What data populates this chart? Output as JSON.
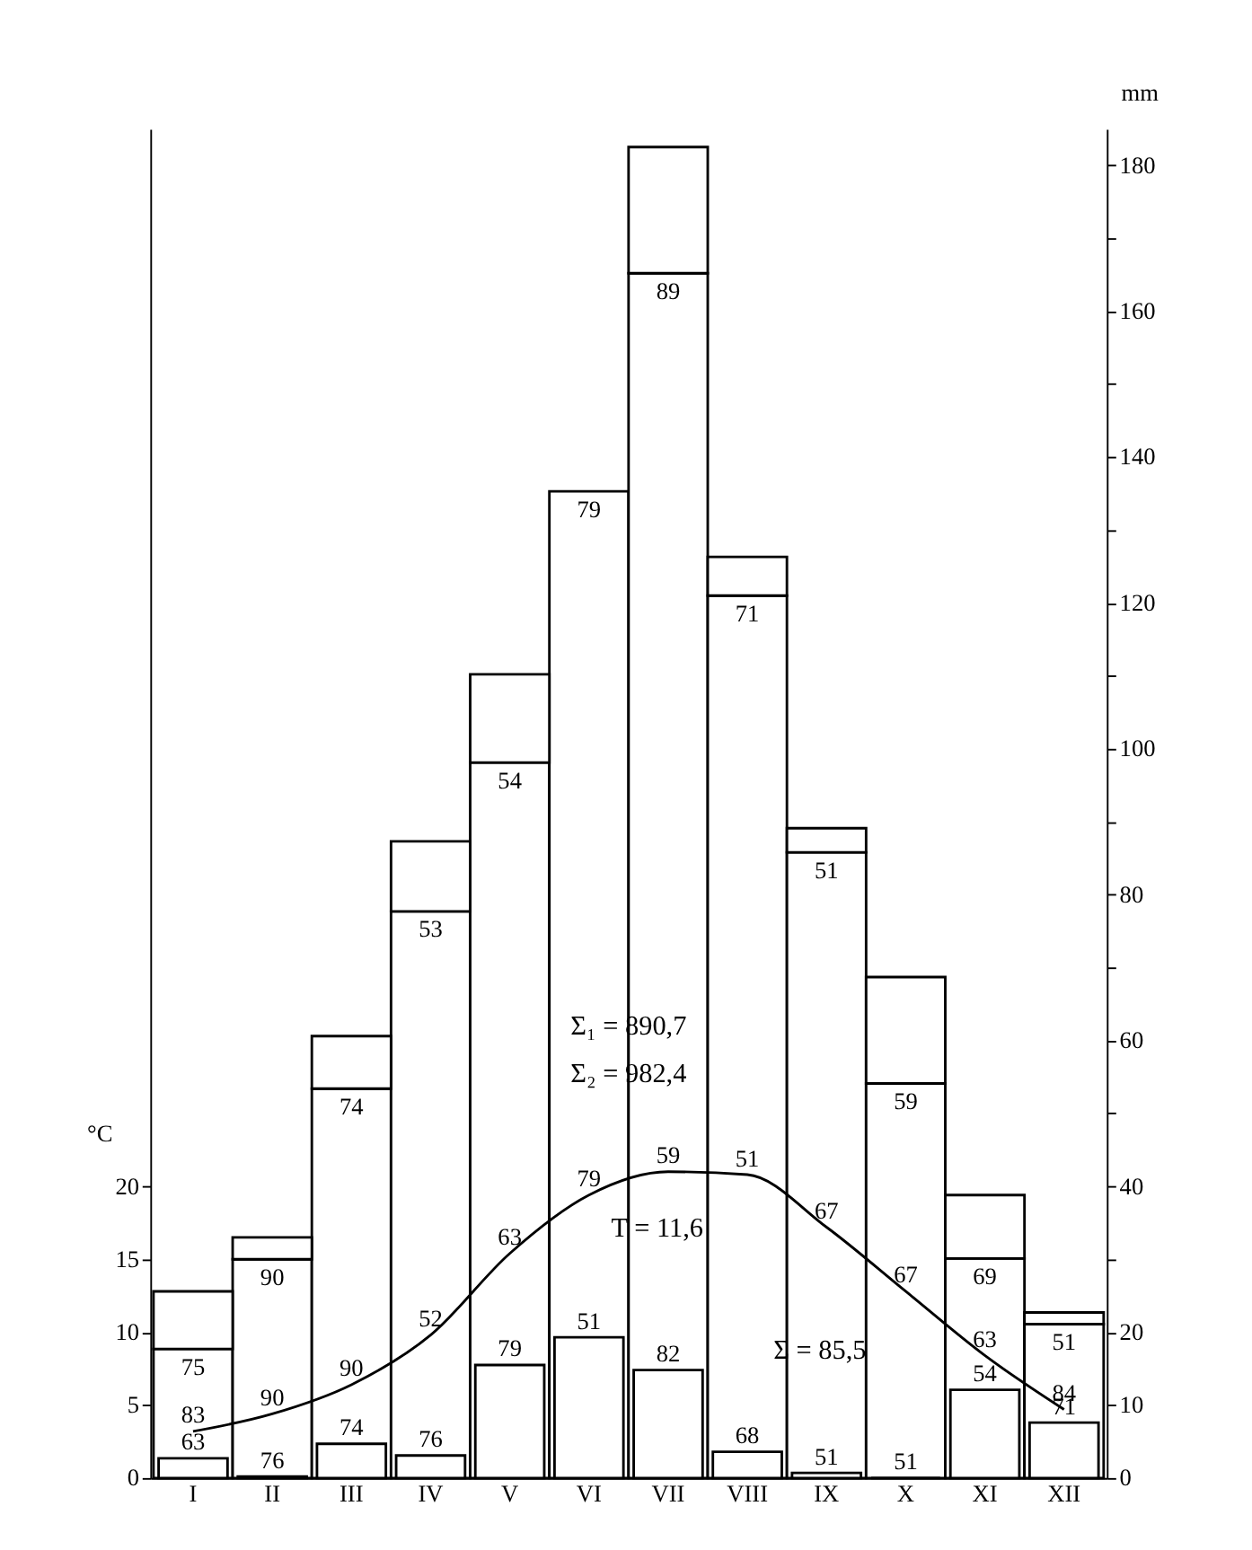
{
  "chart_data": {
    "type": "bar",
    "stacked": true,
    "categories": [
      "I",
      "II",
      "III",
      "IV",
      "V",
      "VI",
      "VII",
      "VIII",
      "IX",
      "X",
      "XI",
      "XII"
    ],
    "ylabel": "mm",
    "y2label": "°C",
    "ylim": [
      0,
      185
    ],
    "yticks": [
      {
        "value": 30,
        "label": null
      },
      40,
      {
        "value": 50,
        "label": null
      },
      60,
      {
        "value": 70,
        "label": null
      },
      80,
      {
        "value": 90,
        "label": null
      },
      100,
      {
        "value": 110,
        "label": null
      },
      120,
      {
        "value": 130,
        "label": null
      },
      140,
      {
        "value": 150,
        "label": null
      },
      160,
      {
        "value": 170,
        "label": null
      },
      180
    ],
    "y2lim": [
      0,
      92.5
    ],
    "y2ticks": [
      0,
      5,
      10,
      15,
      20
    ],
    "y3lim": [
      0,
      185
    ],
    "y3ticks": [
      0,
      10,
      20
    ],
    "series": [
      {
        "color": "#000000",
        "values": [
          17.7,
          30,
          53.4,
          77.7,
          98.1,
          135.3,
          165.2,
          121,
          85.8,
          54.1,
          30.1,
          21.1
        ]
      },
      {
        "color": "#000000",
        "values": [
          7.9,
          3,
          7.2,
          9.6,
          12.1,
          null,
          17.3,
          5.3,
          3.3,
          14.6,
          8.7,
          1.6
        ]
      },
      {
        "axis": "y3",
        "color": "#000000",
        "values": [
          2.7,
          0.2,
          4.7,
          3.1,
          15.5,
          19.3,
          14.8,
          3.6,
          0.7,
          0,
          12.1,
          7.6
        ]
      },
      {
        "type": "line",
        "axis": "y2",
        "color": "#000000",
        "values": [
          3.2,
          4.4,
          6.4,
          9.8,
          15.4,
          19.4,
          21.0,
          20.8,
          17.2,
          12.8,
          8.4,
          4.7
        ]
      }
    ],
    "annotations": [
      "Σ₁ =  890,7",
      "Σ₂ = 982,4",
      "T = 11,6",
      "Σ =  85,5",
      {
        "text": "75",
        "x": "I",
        "y": 17.7
      },
      {
        "text": "90",
        "x": "II",
        "y": 30
      },
      {
        "text": "74",
        "x": "III",
        "y": 53.4
      },
      {
        "text": "53",
        "x": "IV",
        "y": 77.7
      },
      {
        "text": "54",
        "x": "V",
        "y": 98.1
      },
      {
        "text": "79",
        "x": "VI",
        "y": 135.3
      },
      {
        "text": "89",
        "x": "VII",
        "y": 165.2
      },
      {
        "text": "71",
        "x": "VIII",
        "y": 121
      },
      {
        "text": "51",
        "x": "IX",
        "y": 85.8
      },
      {
        "text": "59",
        "x": "X",
        "y": 54.1
      },
      {
        "text": "69",
        "x": "XI",
        "y": 30.1
      },
      {
        "text": "51",
        "x": "XII",
        "y": 21.1
      },
      "63",
      "76",
      "74",
      "76",
      "79",
      "51",
      "82",
      "68",
      "51",
      "51",
      "54",
      "71",
      {
        "text": "83",
        "x": "I",
        "y": 6.4
      },
      {
        "text": "90",
        "x": "II",
        "y": 8.8
      },
      {
        "text": "90",
        "x": "III",
        "y": 12.8
      },
      {
        "text": "52",
        "x": "IV",
        "y": 19.6
      },
      {
        "text": "63",
        "x": "V",
        "y": 30.8
      },
      {
        "text": "79",
        "x": "VI",
        "y": 38.8
      },
      {
        "text": "59",
        "x": "VII",
        "y": 42
      },
      {
        "text": "51",
        "x": "VIII",
        "y": 41.6
      },
      {
        "text": "67",
        "x": "IX",
        "y": 34.4
      },
      {
        "text": "67",
        "x": "X",
        "y": 25.6
      },
      {
        "text": "63",
        "x": "XI",
        "y": 16.8
      },
      {
        "text": "84",
        "x": "XII",
        "y": 9.4
      }
    ],
    "grid": false
  }
}
